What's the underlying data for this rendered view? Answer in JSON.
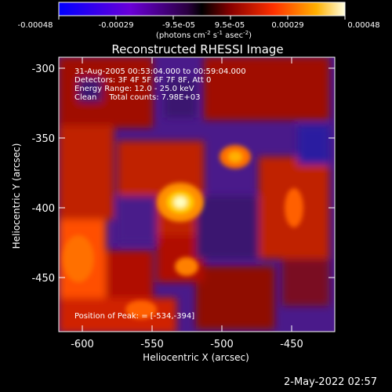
{
  "colorbar": {
    "tick_labels": [
      "-0.00048",
      "-0.00029",
      "-9.5e-05",
      "9.5e-05",
      "0.00029",
      "0.00048"
    ],
    "unit_main": "(photons cm",
    "unit_sup1": "-2",
    "unit_mid": " s",
    "unit_sup2": "-1",
    "unit_asec": " asec",
    "unit_sup3": "-2",
    "unit_end": ")"
  },
  "title": "Reconstructed RHESSI Image",
  "info": {
    "line1": "31-Aug-2005 00:53:04.000 to 00:59:04.000",
    "line2": "Detectors: 3F 4F 5F 6F 7F 8F, Att 0",
    "line3": "Energy Range: 12.0 - 25.0 keV",
    "line4": "Clean     Total counts: 7.98E+03"
  },
  "peak_text": "Position of Peak: = [-534,-394]",
  "xaxis": {
    "label": "Heliocentric X (arcsec)",
    "ticks": [
      "-600",
      "-550",
      "-500",
      "-450"
    ]
  },
  "yaxis": {
    "label": "Heliocentric Y (arcsec)",
    "ticks": [
      "-300",
      "-350",
      "-400",
      "-450"
    ]
  },
  "timestamp": "2-May-2022 02:57",
  "colors": {
    "background": "#000000",
    "text": "#ffffff"
  }
}
